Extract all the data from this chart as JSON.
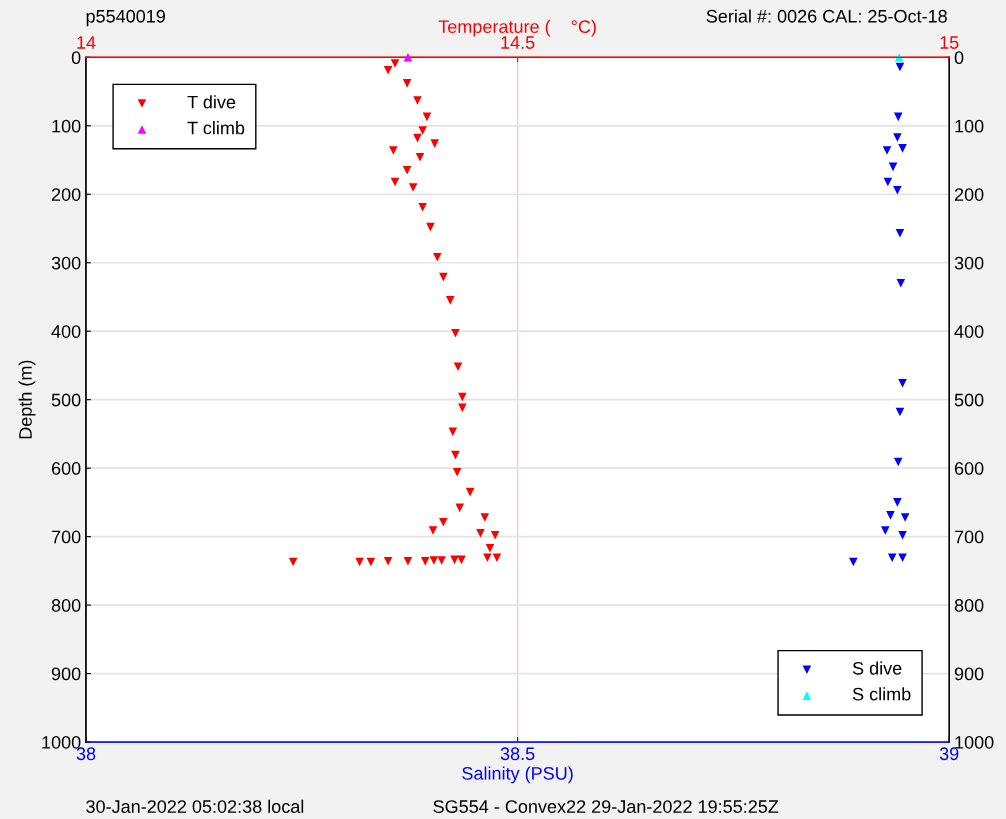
{
  "chart_data": {
    "type": "scatter",
    "xlabel": "Salinity (PSU)",
    "x2label": "Temperature (    °C)",
    "ylabel": "Depth (m)",
    "xlim": [
      38,
      39
    ],
    "xticks": [
      38,
      38.5,
      39
    ],
    "x2lim": [
      14,
      15
    ],
    "x2ticks": [
      14,
      14.5,
      15
    ],
    "ylim": [
      1000,
      0
    ],
    "yticks": [
      0,
      100,
      200,
      300,
      400,
      500,
      600,
      700,
      800,
      900,
      1000
    ],
    "y2lim": [
      1000,
      0
    ],
    "y2ticks": [
      0,
      100,
      200,
      300,
      400,
      500,
      600,
      700,
      800,
      900,
      1000
    ],
    "grid": "y",
    "legend": "top left",
    "ref_lines": [
      {
        "axis": "x",
        "value": 38.5,
        "color": "#ffc8c8",
        "line_style": "solid"
      }
    ],
    "annotations": [
      "p5540019",
      "Serial #: 0026 CAL: 25-Oct-18",
      "30-Jan-2022 05:02:38 local",
      "SG554 - Convex22 29-Jan-2022 19:55:25Z"
    ],
    "series": [
      {
        "name": "T dive",
        "color": "#ff0000",
        "axis": "x2",
        "marker": "triangle_down",
        "x": [
          14.358,
          14.35,
          14.372,
          14.384,
          14.395,
          14.39,
          14.384,
          14.404,
          14.356,
          14.387,
          14.372,
          14.358,
          14.379,
          14.39,
          14.399,
          14.407,
          14.414,
          14.422,
          14.428,
          14.431,
          14.436,
          14.436,
          14.425,
          14.428,
          14.43,
          14.445,
          14.433,
          14.414,
          14.402,
          14.462,
          14.457,
          14.474,
          14.468,
          14.476,
          14.465,
          14.427,
          14.435,
          14.412,
          14.403,
          14.393,
          14.373,
          14.35,
          14.33,
          14.317,
          14.24
        ],
        "values": [
          9,
          19,
          38,
          63,
          87,
          107,
          118,
          126,
          136,
          146,
          165,
          182,
          190,
          219,
          248,
          292,
          321,
          355,
          403,
          452,
          496,
          512,
          547,
          581,
          606,
          635,
          658,
          679,
          691,
          672,
          695,
          698,
          717,
          731,
          731,
          734,
          734,
          735,
          735,
          736,
          736,
          736,
          737,
          737,
          737
        ]
      },
      {
        "name": "T climb",
        "color": "#ff00ff",
        "axis": "x2",
        "marker": "triangle",
        "x": [
          14.373
        ],
        "values": [
          0
        ]
      },
      {
        "name": "S dive",
        "color": "#0000ff",
        "marker": "triangle_down",
        "x": [
          38.943,
          38.941,
          38.94,
          38.946,
          38.928,
          38.935,
          38.929,
          38.94,
          38.943,
          38.944,
          38.946,
          38.943,
          38.941,
          38.94,
          38.932,
          38.949,
          38.926,
          38.946,
          38.946,
          38.934,
          38.889
        ],
        "values": [
          14,
          87,
          117,
          133,
          136,
          160,
          182,
          194,
          257,
          330,
          476,
          518,
          591,
          650,
          669,
          672,
          691,
          698,
          731,
          731,
          737
        ]
      },
      {
        "name": "S climb",
        "color": "#00ffff",
        "marker": "triangle",
        "x": [
          38.942
        ],
        "values": [
          0
        ]
      }
    ]
  }
}
